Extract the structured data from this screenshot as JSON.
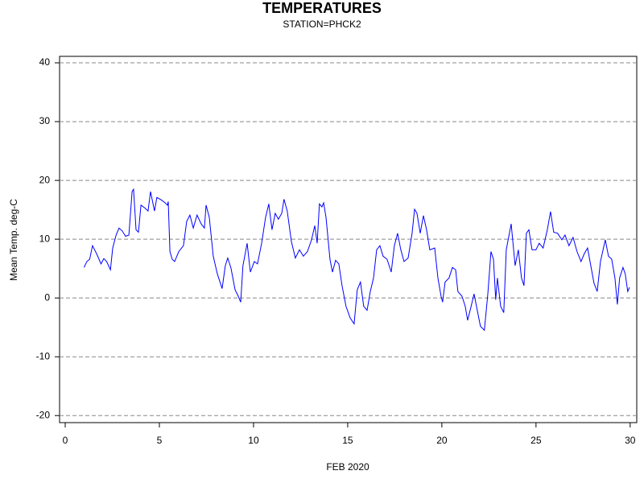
{
  "chart_data": {
    "type": "line",
    "title": "TEMPERATURES",
    "subtitle": "STATION=PHCK2",
    "x_label": "FEB 2020",
    "y_label": "Mean Temp. deg-C",
    "xlim": [
      -0.3,
      30.35
    ],
    "ylim": [
      -21.2,
      41.1
    ],
    "xticks": [
      0,
      5,
      10,
      15,
      20,
      25,
      30
    ],
    "yticks": [
      -20,
      -10,
      0,
      10,
      20,
      30,
      40
    ],
    "grid": true,
    "series": [
      {
        "name": "Mean Temp. deg-C",
        "color": "#0000ff",
        "x": [
          1.0,
          1.15,
          1.3,
          1.45,
          1.67,
          1.9,
          2.05,
          2.2,
          2.4,
          2.52,
          2.7,
          2.86,
          3.03,
          3.2,
          3.38,
          3.55,
          3.63,
          3.76,
          3.89,
          4.02,
          4.23,
          4.4,
          4.53,
          4.74,
          4.87,
          5.09,
          5.3,
          5.43,
          5.47,
          5.56,
          5.68,
          5.81,
          6.03,
          6.28,
          6.45,
          6.62,
          6.8,
          7.0,
          7.22,
          7.39,
          7.48,
          7.65,
          7.86,
          8.08,
          8.33,
          8.5,
          8.63,
          8.8,
          9.02,
          9.19,
          9.32,
          9.44,
          9.66,
          9.83,
          10.04,
          10.21,
          10.43,
          10.64,
          10.81,
          10.98,
          11.15,
          11.32,
          11.5,
          11.62,
          11.79,
          12.01,
          12.22,
          12.44,
          12.65,
          12.86,
          13.08,
          13.25,
          13.38,
          13.5,
          13.63,
          13.72,
          13.85,
          14.06,
          14.19,
          14.36,
          14.53,
          14.7,
          14.91,
          15.13,
          15.34,
          15.51,
          15.68,
          15.85,
          16.03,
          16.2,
          16.37,
          16.54,
          16.71,
          16.88,
          17.09,
          17.31,
          17.48,
          17.65,
          17.82,
          17.99,
          18.21,
          18.42,
          18.55,
          18.68,
          18.85,
          19.02,
          19.19,
          19.36,
          19.62,
          19.79,
          19.96,
          20.04,
          20.17,
          20.38,
          20.56,
          20.73,
          20.85,
          21.07,
          21.24,
          21.37,
          21.54,
          21.71,
          21.88,
          22.05,
          22.26,
          22.44,
          22.61,
          22.74,
          22.86,
          22.95,
          23.12,
          23.29,
          23.42,
          23.68,
          23.89,
          24.06,
          24.23,
          24.36,
          24.49,
          24.62,
          24.79,
          25.0,
          25.17,
          25.38,
          25.6,
          25.77,
          25.94,
          26.15,
          26.37,
          26.54,
          26.75,
          26.97,
          27.18,
          27.39,
          27.56,
          27.74,
          27.91,
          28.08,
          28.25,
          28.42,
          28.68,
          28.85,
          29.02,
          29.19,
          29.32,
          29.44,
          29.62,
          29.74,
          29.87,
          29.96
        ],
        "values": [
          5.2,
          6.2,
          6.6,
          8.9,
          7.5,
          5.8,
          6.7,
          6.2,
          4.8,
          8.5,
          10.7,
          11.9,
          11.4,
          10.5,
          10.7,
          18.1,
          18.5,
          11.6,
          11.2,
          15.8,
          15.3,
          14.8,
          18.1,
          14.8,
          17.1,
          16.7,
          16.2,
          15.8,
          16.4,
          7.9,
          6.6,
          6.2,
          7.9,
          8.9,
          13,
          14.1,
          11.9,
          14.1,
          12.6,
          11.9,
          15.8,
          13.7,
          7.1,
          4.1,
          1.6,
          5.5,
          6.8,
          5.1,
          1.4,
          0.3,
          -0.7,
          5.5,
          9.3,
          4.4,
          6.2,
          5.8,
          9.3,
          13.7,
          16,
          11.6,
          14.4,
          13.4,
          14.4,
          16.8,
          14.8,
          9.6,
          6.8,
          8.2,
          7.1,
          7.9,
          9.9,
          12.3,
          9.3,
          16,
          15.5,
          16.2,
          13.7,
          6.6,
          4.4,
          6.4,
          5.8,
          2.1,
          -1.4,
          -3.4,
          -4.4,
          1.4,
          2.7,
          -1.4,
          -2.1,
          1.1,
          3.4,
          8.2,
          8.9,
          7.1,
          6.6,
          4.4,
          8.9,
          11,
          8.2,
          6.2,
          6.8,
          11,
          15.1,
          14.4,
          11,
          14,
          11.6,
          8.2,
          8.5,
          3.4,
          0.3,
          -0.7,
          2.7,
          3.4,
          5.2,
          4.8,
          1.1,
          0.3,
          -1.4,
          -3.8,
          -1.6,
          0.7,
          -2.1,
          -4.8,
          -5.5,
          0.7,
          7.9,
          6.6,
          -0.3,
          3.4,
          -1.4,
          -2.5,
          8.2,
          12.6,
          5.5,
          8.2,
          3.4,
          2.1,
          11,
          11.6,
          8.2,
          8.2,
          9.3,
          8.5,
          11.6,
          14.7,
          11.2,
          11,
          9.9,
          10.7,
          8.9,
          10.3,
          7.9,
          6.2,
          7.5,
          8.5,
          5.5,
          2.5,
          1.1,
          6.2,
          9.9,
          7.1,
          6.6,
          3.4,
          -1.1,
          3.4,
          5.2,
          4.1,
          1.1,
          1.8
        ]
      }
    ]
  }
}
